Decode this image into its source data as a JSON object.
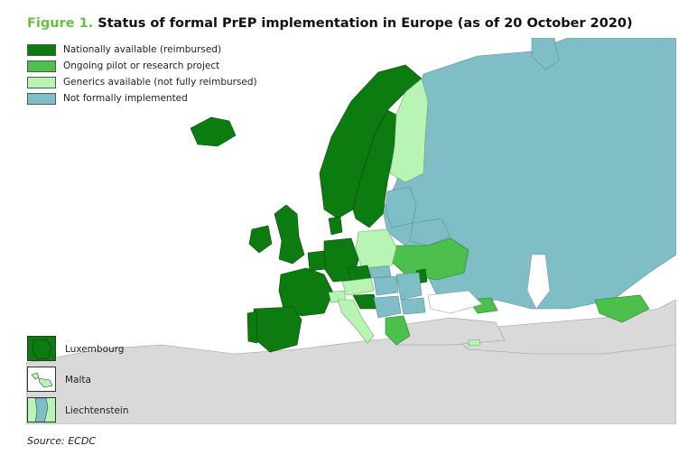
{
  "title": {
    "figure_label": "Figure 1.",
    "text": "Status of formal PrEP implementation in Europe (as of 20 October 2020)"
  },
  "legend": [
    {
      "label": "Nationally available (reimbursed)",
      "color": "#0c7c10"
    },
    {
      "label": "Ongoing pilot or research project",
      "color": "#4cbf4c"
    },
    {
      "label": "Generics available (not fully reimbursed)",
      "color": "#b8f4b4"
    },
    {
      "label": "Not formally implemented",
      "color": "#7fbec6"
    }
  ],
  "insets": [
    {
      "label": "Luxembourg",
      "status_color": "#0c7c10"
    },
    {
      "label": "Malta",
      "status_color": "#b8f4b4"
    },
    {
      "label": "Liechtenstein",
      "status_color": "#b8f4b4"
    }
  ],
  "map_colors": {
    "sea": "#ffffff",
    "non_eu_land": "#d9d9d9",
    "nationally_available": "#0c7c10",
    "pilot": "#4cbf4c",
    "generics": "#b8f4b4",
    "not_implemented": "#7fbec6"
  },
  "source": "Source: ECDC"
}
